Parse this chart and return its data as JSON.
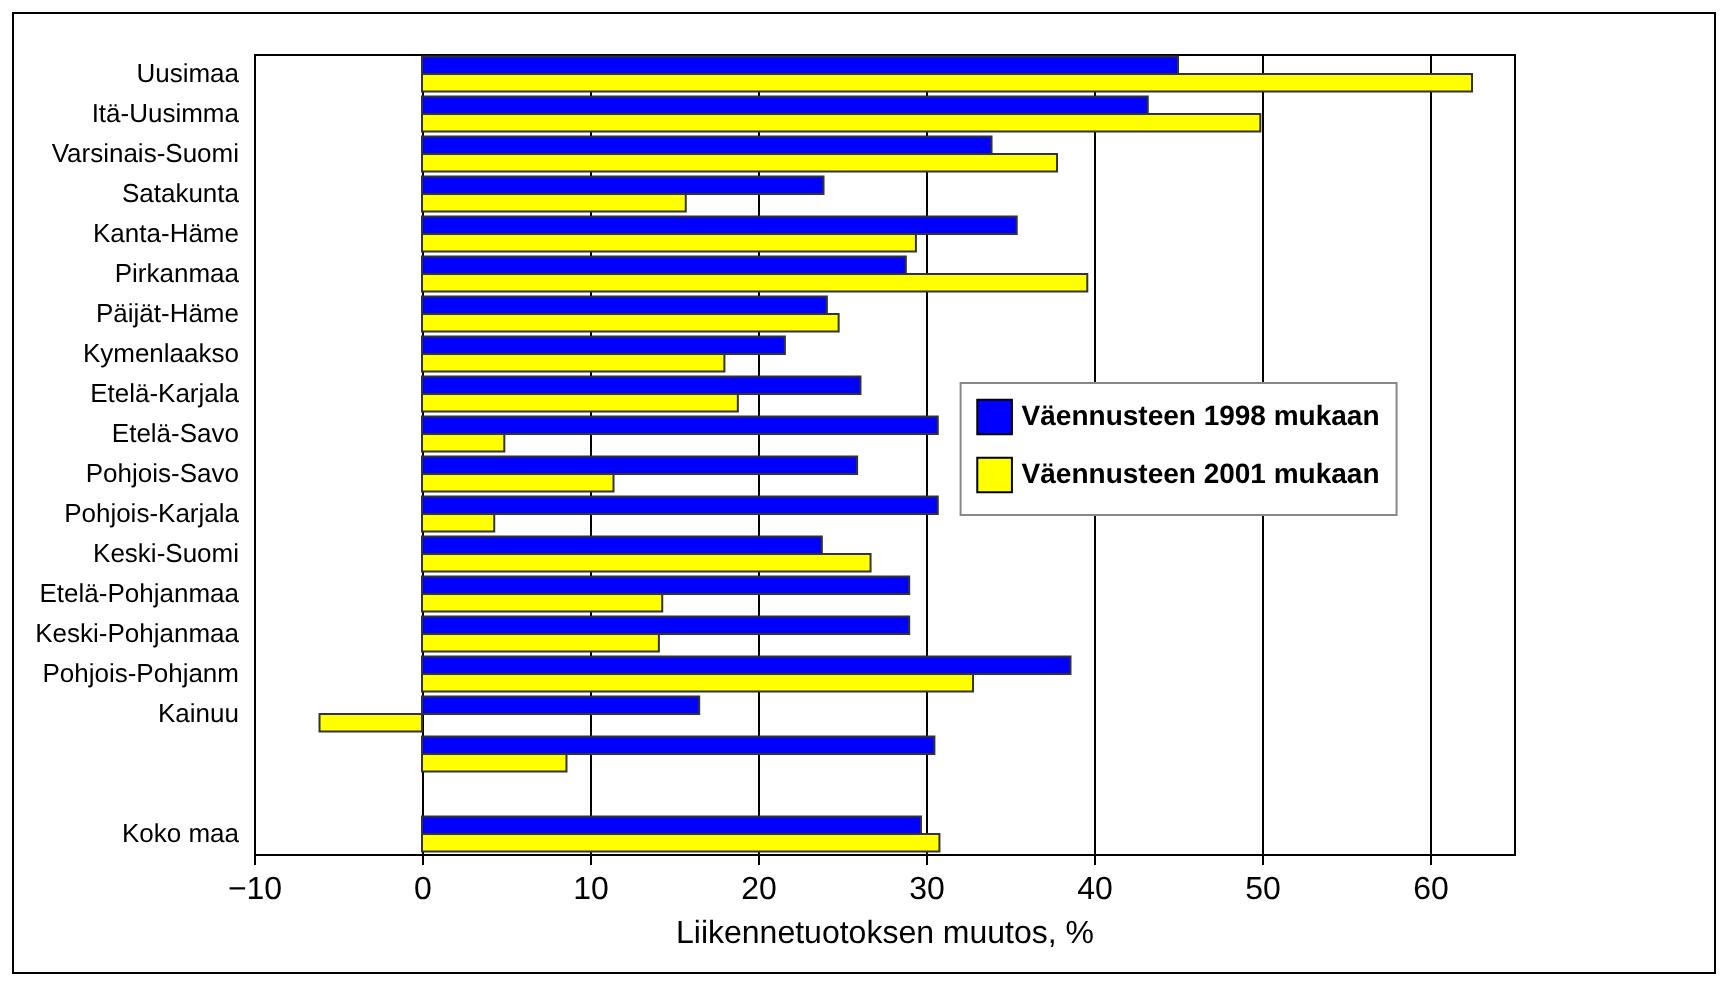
{
  "chart_data": {
    "type": "bar",
    "orientation": "horizontal",
    "xlabel": "Liikennetuotoksen muutos, %",
    "categories": [
      "Uusimaa",
      "Itä-Uusimma",
      "Varsinais-Suomi",
      "Satakunta",
      "Kanta-Häme",
      "Pirkanmaa",
      "Päijät-Häme",
      "Kymenlaakso",
      "Etelä-Karjala",
      "Etelä-Savo",
      "Pohjois-Savo",
      "Pohjois-Karjala",
      "Keski-Suomi",
      "Etelä-Pohjanmaa",
      "Keski-Pohjanmaa",
      "Pohjois-Pohjanm",
      "Kainuu",
      null,
      null,
      "Koko maa"
    ],
    "series": [
      {
        "name": "Väennusteen 1998 mukaan",
        "color": "#0000ff",
        "values": [
          45.0,
          43.2,
          33.9,
          23.9,
          35.4,
          28.8,
          24.1,
          21.6,
          26.1,
          30.7,
          25.9,
          30.7,
          23.8,
          29.0,
          29.0,
          38.6,
          16.5,
          30.5,
          null,
          29.7
        ]
      },
      {
        "name": "Väennusteen 2001 mukaan",
        "color": "#ffff00",
        "values": [
          62.5,
          49.9,
          37.8,
          15.7,
          29.4,
          39.6,
          24.8,
          18.0,
          18.8,
          4.9,
          11.4,
          4.3,
          26.7,
          14.3,
          14.1,
          32.8,
          -6.1,
          8.6,
          null,
          30.8
        ]
      }
    ],
    "xlim": [
      -10,
      65
    ],
    "xticks": [
      -10,
      0,
      10,
      20,
      30,
      40,
      50,
      60
    ],
    "grid": "x",
    "legend": "right"
  }
}
